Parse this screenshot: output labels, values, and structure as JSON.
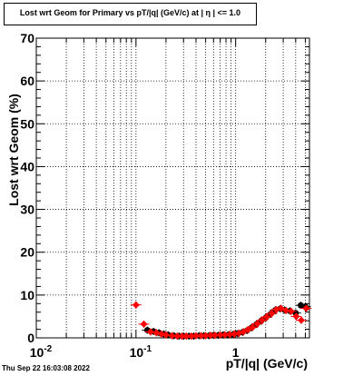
{
  "chart_data": {
    "type": "scatter",
    "title": "Lost wrt Geom for Primary vs pT/|q| (GeV/c) at |  η  | <= 1.0",
    "xlabel": "pT/|q| (GeV/c)",
    "ylabel": "Lost wrt Geom (%)",
    "xscale": "log",
    "xlim": [
      0.01,
      5.5
    ],
    "ylim": [
      0,
      70
    ],
    "grid": true,
    "y_ticks": [
      0,
      10,
      20,
      30,
      40,
      50,
      60,
      70
    ],
    "x_tick_labels": [
      {
        "value": 0.01,
        "base": "10",
        "exp": "-2"
      },
      {
        "value": 0.1,
        "base": "10",
        "exp": "-1"
      },
      {
        "value": 1,
        "base": "1",
        "exp": ""
      }
    ],
    "series": [
      {
        "color": "#000000",
        "marker": "circle",
        "points": [
          [
            0.13,
            1.8
          ],
          [
            0.15,
            1.5
          ],
          [
            0.17,
            1.2
          ],
          [
            0.19,
            0.9
          ],
          [
            0.21,
            0.7
          ],
          [
            0.24,
            0.5
          ],
          [
            0.27,
            0.4
          ],
          [
            0.3,
            0.4
          ],
          [
            0.34,
            0.4
          ],
          [
            0.38,
            0.4
          ],
          [
            0.43,
            0.5
          ],
          [
            0.48,
            0.5
          ],
          [
            0.54,
            0.5
          ],
          [
            0.6,
            0.6
          ],
          [
            0.67,
            0.6
          ],
          [
            0.75,
            0.7
          ],
          [
            0.84,
            0.7
          ],
          [
            0.94,
            0.8
          ],
          [
            1.05,
            1.0
          ],
          [
            1.17,
            1.3
          ],
          [
            1.3,
            1.7
          ],
          [
            1.45,
            2.4
          ],
          [
            1.62,
            3.2
          ],
          [
            1.81,
            4.0
          ],
          [
            2.02,
            4.8
          ],
          [
            2.25,
            5.6
          ],
          [
            2.5,
            6.5
          ],
          [
            2.8,
            6.8
          ],
          [
            3.1,
            6.5
          ],
          [
            3.5,
            6.3
          ],
          [
            4.0,
            5.8
          ],
          [
            4.5,
            7.6
          ],
          [
            5.0,
            7.3
          ]
        ]
      },
      {
        "color": "#ff0000",
        "marker": "diamond",
        "points": [
          [
            0.1,
            7.7
          ],
          [
            0.12,
            3.2
          ],
          [
            0.14,
            1.4
          ],
          [
            0.16,
            1.2
          ],
          [
            0.18,
            0.9
          ],
          [
            0.2,
            0.7
          ],
          [
            0.23,
            0.5
          ],
          [
            0.26,
            0.4
          ],
          [
            0.29,
            0.4
          ],
          [
            0.32,
            0.4
          ],
          [
            0.36,
            0.4
          ],
          [
            0.4,
            0.5
          ],
          [
            0.45,
            0.5
          ],
          [
            0.5,
            0.5
          ],
          [
            0.56,
            0.6
          ],
          [
            0.62,
            0.6
          ],
          [
            0.7,
            0.7
          ],
          [
            0.78,
            0.7
          ],
          [
            0.87,
            0.8
          ],
          [
            0.97,
            0.9
          ],
          [
            1.08,
            1.1
          ],
          [
            1.2,
            1.4
          ],
          [
            1.33,
            1.9
          ],
          [
            1.48,
            2.5
          ],
          [
            1.65,
            3.3
          ],
          [
            1.84,
            4.1
          ],
          [
            2.05,
            4.9
          ],
          [
            2.3,
            5.7
          ],
          [
            2.55,
            6.6
          ],
          [
            2.85,
            6.9
          ],
          [
            3.2,
            6.4
          ],
          [
            3.6,
            6.2
          ],
          [
            4.05,
            5.0
          ],
          [
            4.55,
            4.1
          ],
          [
            5.1,
            6.9
          ]
        ]
      }
    ]
  },
  "footer": {
    "timestamp": "Thu Sep 22 16:03:08 2022"
  }
}
